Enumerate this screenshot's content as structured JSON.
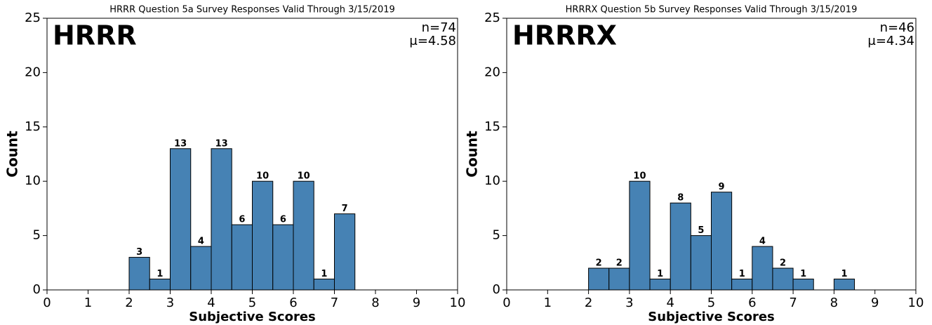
{
  "chart_data": [
    {
      "type": "histogram",
      "title": "HRRR Question 5a Survey Responses Valid Through 3/15/2019",
      "xlabel": "Subjective Scores",
      "ylabel": "Count",
      "annotations": [
        "HRRR",
        "n=74",
        "μ=4.58"
      ],
      "bins": [
        0.5,
        1,
        1.5,
        2,
        2.5,
        3,
        3.5,
        4,
        4.5,
        5,
        5.5,
        6,
        6.5,
        7,
        7.5,
        8,
        8.5,
        9,
        9.5,
        10
      ],
      "values": [
        0,
        0,
        0,
        3,
        1,
        13,
        4,
        13,
        6,
        10,
        6,
        10,
        1,
        7,
        0,
        0,
        0,
        0,
        0
      ],
      "color": "#4682b4",
      "xlim": [
        0,
        10
      ],
      "xticks": [
        0,
        1,
        2,
        3,
        4,
        5,
        6,
        7,
        8,
        9,
        10
      ],
      "ylim": [
        0,
        25
      ],
      "yticks": [
        0,
        5,
        10,
        15,
        20,
        25
      ]
    },
    {
      "type": "histogram",
      "title": "HRRRX Question 5b Survey Responses Valid Through 3/15/2019",
      "xlabel": "Subjective Scores",
      "ylabel": "Count",
      "annotations": [
        "HRRRX",
        "n=46",
        "μ=4.34"
      ],
      "bins": [
        0.5,
        1,
        1.5,
        2,
        2.5,
        3,
        3.5,
        4,
        4.5,
        5,
        5.5,
        6,
        6.5,
        7,
        7.5,
        8,
        8.5,
        9,
        9.5,
        10
      ],
      "values": [
        0,
        0,
        0,
        2,
        2,
        10,
        1,
        8,
        5,
        9,
        1,
        4,
        2,
        1,
        0,
        1,
        0,
        0,
        0
      ],
      "color": "#4682b4",
      "xlim": [
        0,
        10
      ],
      "xticks": [
        0,
        1,
        2,
        3,
        4,
        5,
        6,
        7,
        8,
        9,
        10
      ],
      "ylim": [
        0,
        25
      ],
      "yticks": [
        0,
        5,
        10,
        15,
        20,
        25
      ]
    }
  ]
}
